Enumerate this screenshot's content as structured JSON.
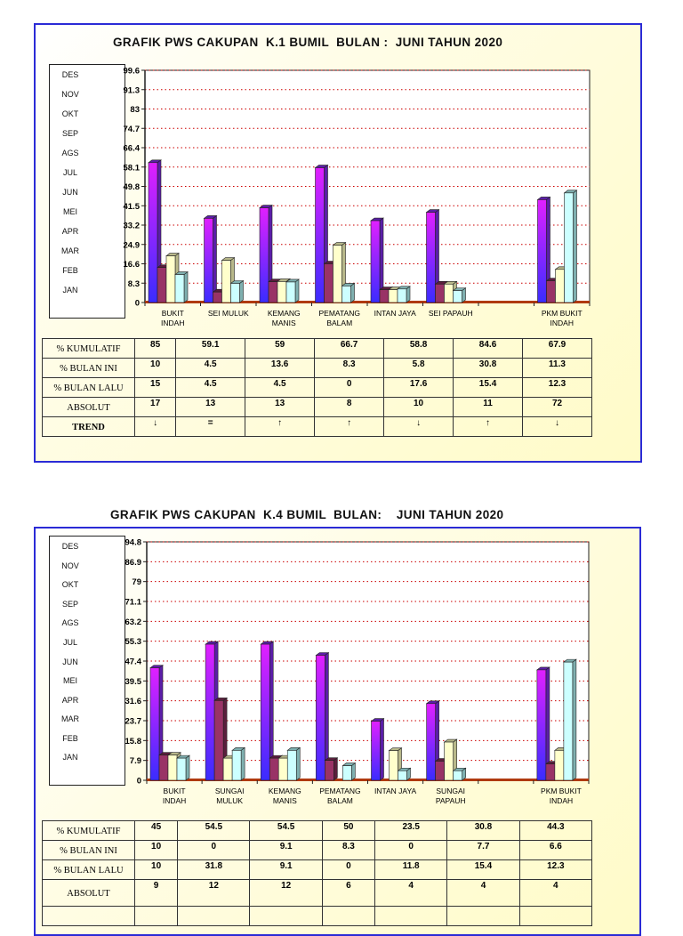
{
  "colors": {
    "frame_border": "#2b2bd6",
    "series": [
      "#b026ff",
      "#993366",
      "#ffffcc",
      "#ccffff"
    ],
    "grid": "#cc0000"
  },
  "legend_months": [
    "DES",
    "NOV",
    "OKT",
    "SEP",
    "AGS",
    "JUL",
    "JUN",
    "MEI",
    "APR",
    "MAR",
    "FEB",
    "JAN"
  ],
  "sections": [
    {
      "title": "GRAFIK PWS CAKUPAN  K.1 BUMIL  BULAN :  JUNI TAHUN 2020",
      "chart_data": {
        "type": "bar",
        "categories": [
          [
            "BUKIT",
            "INDAH"
          ],
          [
            "SEI MULUK"
          ],
          [
            "KEMANG",
            "MANIS"
          ],
          [
            "PEMATANG",
            "BALAM"
          ],
          [
            "INTAN JAYA"
          ],
          [
            "SEI PAPAUH"
          ],
          [
            ""
          ],
          [
            "PKM BUKIT",
            "INDAH"
          ]
        ],
        "series": [
          {
            "values": [
              60,
              36.1,
              40.6,
              57.8,
              35.1,
              38.7,
              null,
              44.1
            ]
          },
          {
            "values": [
              15,
              4.5,
              8.9,
              16.6,
              5.5,
              7.9,
              null,
              9.3
            ]
          },
          {
            "values": [
              20,
              18.1,
              9,
              24.6,
              5.5,
              7.9,
              null,
              14.2
            ]
          },
          {
            "values": [
              12,
              8.2,
              8.8,
              7.1,
              5.8,
              5.1,
              null,
              47
            ]
          }
        ],
        "yticks": [
          "0",
          "8.3",
          "16.6",
          "24.9",
          "33.2",
          "41.5",
          "49.8",
          "58.1",
          "66.4",
          "74.7",
          "83",
          "91.3",
          "99.6"
        ],
        "ylim": [
          0,
          99.6
        ],
        "grid": true
      },
      "table": {
        "rows": [
          {
            "label": "% KUMULATIF",
            "values": [
              "85",
              "59.1",
              "59",
              "66.7",
              "58.8",
              "84.6",
              "67.9"
            ]
          },
          {
            "label": "% BULAN INI",
            "values": [
              "10",
              "4.5",
              "13.6",
              "8.3",
              "5.8",
              "30.8",
              "11.3"
            ]
          },
          {
            "label": "% BULAN LALU",
            "values": [
              "15",
              "4.5",
              "4.5",
              "0",
              "17.6",
              "15.4",
              "12.3"
            ]
          },
          {
            "label": "ABSOLUT",
            "values": [
              "17",
              "13",
              "13",
              "8",
              "10",
              "11",
              "72"
            ]
          },
          {
            "label": "TREND",
            "values": [
              "↓",
              "=",
              "↑",
              "↑",
              "↓",
              "↑",
              "↓"
            ]
          }
        ]
      }
    },
    {
      "title": "GRAFIK PWS CAKUPAN  K.4 BUMIL  BULAN:    JUNI TAHUN 2020",
      "chart_data": {
        "type": "bar",
        "categories": [
          [
            "BUKIT",
            "INDAH"
          ],
          [
            "SUNGAI",
            "MULUK"
          ],
          [
            "KEMANG",
            "MANIS"
          ],
          [
            "PEMATANG",
            "BALAM"
          ],
          [
            "INTAN JAYA"
          ],
          [
            "SUNGAI",
            "PAPAUH"
          ],
          [
            ""
          ],
          [
            "PKM BUKIT",
            "INDAH"
          ]
        ],
        "series": [
          {
            "values": [
              44.7,
              54.1,
              54.1,
              49.7,
              23.5,
              30.5,
              null,
              43.9
            ]
          },
          {
            "values": [
              10,
              31.7,
              8.8,
              7.9,
              0,
              7.6,
              null,
              6.5
            ]
          },
          {
            "values": [
              10,
              8.8,
              8.8,
              0,
              11.8,
              15.2,
              null,
              11.9
            ]
          },
          {
            "values": [
              8.8,
              11.9,
              11.9,
              5.8,
              3.8,
              3.8,
              null,
              47
            ]
          }
        ],
        "yticks": [
          "0",
          "7.9",
          "15.8",
          "23.7",
          "31.6",
          "39.5",
          "47.4",
          "55.3",
          "63.2",
          "71.1",
          "79",
          "86.9",
          "94.8"
        ],
        "ylim": [
          0,
          94.8
        ],
        "grid": true
      },
      "table": {
        "rows": [
          {
            "label": "% KUMULATIF",
            "values": [
              "45",
              "54.5",
              "54.5",
              "50",
              "23.5",
              "30.8",
              "44.3"
            ]
          },
          {
            "label": "% BULAN INI",
            "values": [
              "10",
              "0",
              "9.1",
              "8.3",
              "0",
              "7.7",
              "6.6"
            ]
          },
          {
            "label": "% BULAN LALU",
            "values": [
              "10",
              "31.8",
              "9.1",
              "0",
              "11.8",
              "15.4",
              "12.3"
            ]
          },
          {
            "label": "ABSOLUT",
            "values": [
              "9",
              "12",
              "12",
              "6",
              "4",
              "4",
              "4"
            ]
          }
        ]
      }
    }
  ]
}
